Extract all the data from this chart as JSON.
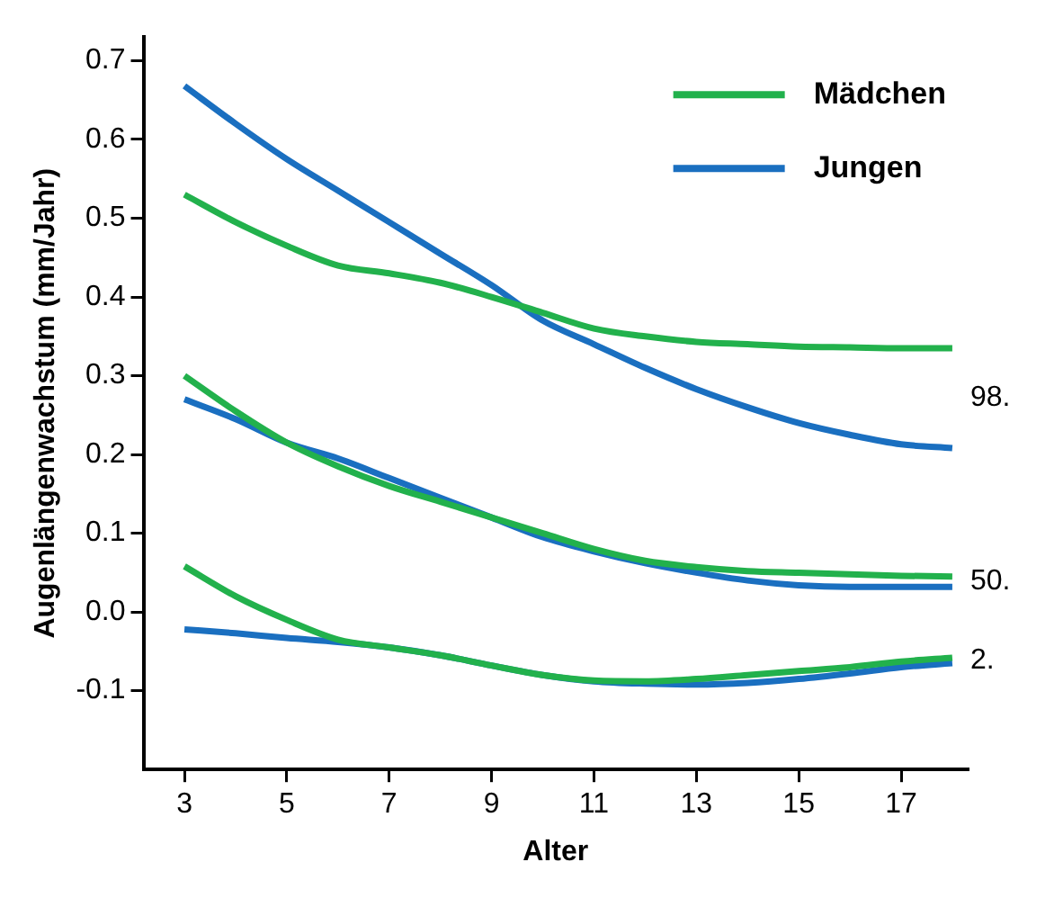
{
  "chart_data": {
    "type": "line",
    "xlabel": "Alter",
    "ylabel": "Augenlängenwachstum (mm/Jahr)",
    "x": [
      3,
      4,
      5,
      6,
      7,
      8,
      9,
      10,
      11,
      12,
      13,
      14,
      15,
      16,
      17,
      18
    ],
    "series": [
      {
        "name": "Mädchen",
        "color": "#22b14c",
        "values": [
          0.53,
          0.495,
          0.465,
          0.44,
          0.43,
          0.418,
          0.4,
          0.38,
          0.36,
          0.35,
          0.343,
          0.34,
          0.337,
          0.336,
          0.335,
          0.335
        ]
      },
      {
        "name": "Jungen",
        "color": "#1a6fc0",
        "values": [
          0.668,
          0.62,
          0.575,
          0.535,
          0.495,
          0.455,
          0.415,
          0.37,
          0.34,
          0.31,
          0.283,
          0.26,
          0.24,
          0.225,
          0.213,
          0.208
        ]
      },
      {
        "color": "#22b14c",
        "values": [
          0.3,
          0.255,
          0.215,
          0.185,
          0.16,
          0.14,
          0.12,
          0.1,
          0.08,
          0.065,
          0.057,
          0.052,
          0.05,
          0.048,
          0.046,
          0.045
        ]
      },
      {
        "color": "#1a6fc0",
        "values": [
          0.27,
          0.245,
          0.215,
          0.195,
          0.17,
          0.145,
          0.12,
          0.095,
          0.077,
          0.062,
          0.05,
          0.04,
          0.034,
          0.032,
          0.032,
          0.032
        ]
      },
      {
        "color": "#22b14c",
        "values": [
          0.058,
          0.02,
          -0.01,
          -0.035,
          -0.045,
          -0.055,
          -0.068,
          -0.08,
          -0.087,
          -0.088,
          -0.085,
          -0.08,
          -0.075,
          -0.07,
          -0.063,
          -0.058
        ]
      },
      {
        "color": "#1a6fc0",
        "values": [
          -0.022,
          -0.027,
          -0.033,
          -0.038,
          -0.045,
          -0.055,
          -0.068,
          -0.08,
          -0.088,
          -0.091,
          -0.092,
          -0.09,
          -0.085,
          -0.078,
          -0.07,
          -0.065
        ]
      }
    ],
    "annotations": [
      "98.",
      "50.",
      "2."
    ],
    "xlim": [
      2.2,
      18.3
    ],
    "xticks": [
      3,
      5,
      7,
      9,
      11,
      13,
      15,
      17
    ],
    "ylim": [
      -0.2,
      0.73
    ],
    "yticks": [
      -0.1,
      {
        "value": 0,
        "label": "0.0"
      },
      0.1,
      0.2,
      0.3,
      0.4,
      0.5,
      0.6,
      0.7
    ],
    "grid": false,
    "legend": "top right",
    "marker": "none",
    "line_style": "solid"
  }
}
